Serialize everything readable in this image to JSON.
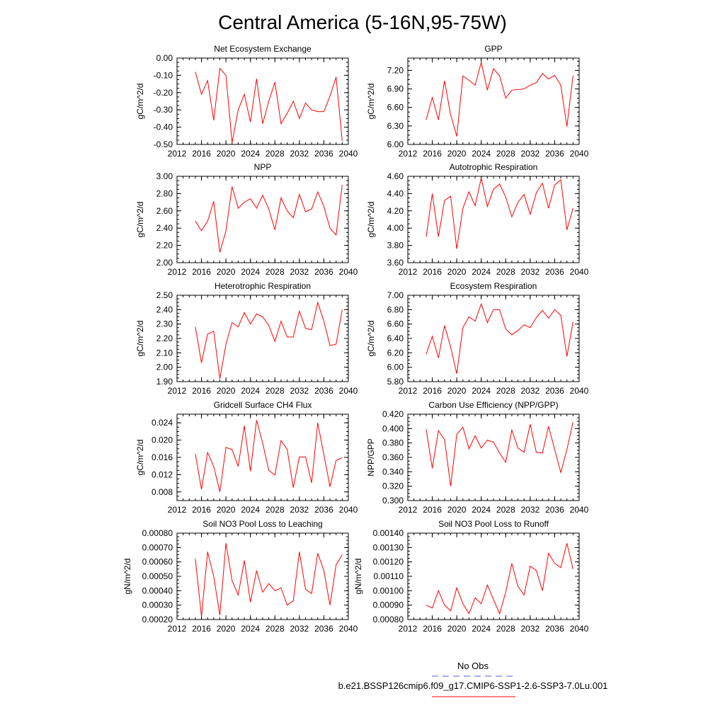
{
  "page": {
    "title": "Central America (5-16N,95-75W)",
    "legend": {
      "obs_label": "No Obs",
      "obs_color": "#5b5bd6",
      "case_label": "b.e21.BSSP126cmip6.f09_g17.CMIP6-SSP1-2.6-SSP3-7.0Lu.001",
      "case_color": "#ff0000"
    }
  },
  "chart_data": [
    {
      "type": "line",
      "title": "Net Ecosystem Exchange",
      "ylabel": "gC/m^2/d",
      "ylim": [
        -0.5,
        0.0
      ],
      "yticks": [
        "0.00",
        "-0.10",
        "-0.20",
        "-0.30",
        "-0.40",
        "-0.50"
      ],
      "xlim": [
        2012,
        2040
      ],
      "xticks": [
        "2012",
        "2016",
        "2020",
        "2024",
        "2028",
        "2032",
        "2036",
        "2040"
      ],
      "x": [
        2015,
        2016,
        2017,
        2018,
        2019,
        2020,
        2021,
        2022,
        2023,
        2024,
        2025,
        2026,
        2027,
        2028,
        2029,
        2030,
        2031,
        2032,
        2033,
        2034,
        2035,
        2036,
        2037,
        2038,
        2039
      ],
      "values": [
        -0.08,
        -0.21,
        -0.13,
        -0.36,
        -0.06,
        -0.1,
        -0.49,
        -0.3,
        -0.21,
        -0.37,
        -0.12,
        -0.38,
        -0.25,
        -0.14,
        -0.38,
        -0.32,
        -0.25,
        -0.35,
        -0.26,
        -0.3,
        -0.31,
        -0.31,
        -0.22,
        -0.11,
        -0.48
      ]
    },
    {
      "type": "line",
      "title": "GPP",
      "ylabel": "gC/m^2/d",
      "ylim": [
        6.0,
        7.4
      ],
      "yticks": [
        "7.20",
        "6.90",
        "6.60",
        "6.30",
        "6.00"
      ],
      "xlim": [
        2012,
        2040
      ],
      "xticks": [
        "2012",
        "2016",
        "2020",
        "2024",
        "2028",
        "2032",
        "2036",
        "2040"
      ],
      "x": [
        2015,
        2016,
        2017,
        2018,
        2019,
        2020,
        2021,
        2022,
        2023,
        2024,
        2025,
        2026,
        2027,
        2028,
        2029,
        2030,
        2031,
        2032,
        2033,
        2034,
        2035,
        2036,
        2037,
        2038,
        2039
      ],
      "values": [
        6.4,
        6.76,
        6.4,
        7.03,
        6.48,
        6.13,
        7.11,
        7.04,
        6.96,
        7.33,
        6.88,
        7.23,
        7.11,
        6.75,
        6.88,
        6.89,
        6.9,
        6.96,
        7.0,
        7.15,
        7.06,
        7.12,
        6.96,
        6.29,
        7.12
      ]
    },
    {
      "type": "line",
      "title": "NPP",
      "ylabel": "gC/m^2/d",
      "ylim": [
        2.0,
        3.0
      ],
      "yticks": [
        "3.00",
        "2.80",
        "2.60",
        "2.40",
        "2.20",
        "2.00"
      ],
      "xlim": [
        2012,
        2040
      ],
      "xticks": [
        "2012",
        "2016",
        "2020",
        "2024",
        "2028",
        "2032",
        "2036",
        "2040"
      ],
      "x": [
        2015,
        2016,
        2017,
        2018,
        2019,
        2020,
        2021,
        2022,
        2023,
        2024,
        2025,
        2026,
        2027,
        2028,
        2029,
        2030,
        2031,
        2032,
        2033,
        2034,
        2035,
        2036,
        2037,
        2038,
        2039
      ],
      "values": [
        2.48,
        2.37,
        2.48,
        2.71,
        2.12,
        2.37,
        2.88,
        2.63,
        2.7,
        2.74,
        2.63,
        2.78,
        2.62,
        2.38,
        2.75,
        2.6,
        2.52,
        2.79,
        2.59,
        2.62,
        2.82,
        2.65,
        2.4,
        2.32,
        2.9
      ]
    },
    {
      "type": "line",
      "title": "Autotrophic Respiration",
      "ylabel": "gC/m^2/d",
      "ylim": [
        3.6,
        4.6
      ],
      "yticks": [
        "4.60",
        "4.40",
        "4.20",
        "4.00",
        "3.80",
        "3.60"
      ],
      "xlim": [
        2012,
        2040
      ],
      "xticks": [
        "2012",
        "2016",
        "2020",
        "2024",
        "2028",
        "2032",
        "2036",
        "2040"
      ],
      "x": [
        2015,
        2016,
        2017,
        2018,
        2019,
        2020,
        2021,
        2022,
        2023,
        2024,
        2025,
        2026,
        2027,
        2028,
        2029,
        2030,
        2031,
        2032,
        2033,
        2034,
        2035,
        2036,
        2037,
        2038,
        2039
      ],
      "values": [
        3.9,
        4.4,
        3.9,
        4.32,
        4.37,
        3.76,
        4.23,
        4.42,
        4.26,
        4.58,
        4.25,
        4.45,
        4.51,
        4.36,
        4.13,
        4.3,
        4.39,
        4.16,
        4.41,
        4.52,
        4.23,
        4.5,
        4.56,
        3.98,
        4.23
      ]
    },
    {
      "type": "line",
      "title": "Heterotrophic Respiration",
      "ylabel": "gC/m^2/d",
      "ylim": [
        1.9,
        2.5
      ],
      "yticks": [
        "2.50",
        "2.40",
        "2.30",
        "2.20",
        "2.10",
        "2.00",
        "1.90"
      ],
      "xlim": [
        2012,
        2040
      ],
      "xticks": [
        "2012",
        "2016",
        "2020",
        "2024",
        "2028",
        "2032",
        "2036",
        "2040"
      ],
      "x": [
        2015,
        2016,
        2017,
        2018,
        2019,
        2020,
        2021,
        2022,
        2023,
        2024,
        2025,
        2026,
        2027,
        2028,
        2029,
        2030,
        2031,
        2032,
        2033,
        2034,
        2035,
        2036,
        2037,
        2038,
        2039
      ],
      "values": [
        2.28,
        2.03,
        2.23,
        2.25,
        1.92,
        2.16,
        2.31,
        2.28,
        2.38,
        2.3,
        2.37,
        2.35,
        2.29,
        2.18,
        2.32,
        2.21,
        2.21,
        2.39,
        2.27,
        2.26,
        2.45,
        2.32,
        2.15,
        2.16,
        2.4
      ]
    },
    {
      "type": "line",
      "title": "Ecosystem Respiration",
      "ylabel": "gC/m^2/d",
      "ylim": [
        5.8,
        7.0
      ],
      "yticks": [
        "7.00",
        "6.80",
        "6.60",
        "6.40",
        "6.20",
        "6.00",
        "5.80"
      ],
      "xlim": [
        2012,
        2040
      ],
      "xticks": [
        "2012",
        "2016",
        "2020",
        "2024",
        "2028",
        "2032",
        "2036",
        "2040"
      ],
      "x": [
        2015,
        2016,
        2017,
        2018,
        2019,
        2020,
        2021,
        2022,
        2023,
        2024,
        2025,
        2026,
        2027,
        2028,
        2029,
        2030,
        2031,
        2032,
        2033,
        2034,
        2035,
        2036,
        2037,
        2038,
        2039
      ],
      "values": [
        6.18,
        6.43,
        6.13,
        6.58,
        6.28,
        5.91,
        6.55,
        6.7,
        6.64,
        6.88,
        6.62,
        6.8,
        6.8,
        6.53,
        6.45,
        6.51,
        6.59,
        6.55,
        6.69,
        6.79,
        6.68,
        6.8,
        6.72,
        6.15,
        6.63
      ]
    },
    {
      "type": "line",
      "title": "Gridcell Surface CH4 Flux",
      "ylabel": "gC/m^2/d",
      "ylim": [
        0.006,
        0.026
      ],
      "yticks": [
        "0.024",
        "0.020",
        "0.016",
        "0.012",
        "0.008"
      ],
      "xlim": [
        2012,
        2040
      ],
      "xticks": [
        "2012",
        "2016",
        "2020",
        "2024",
        "2028",
        "2032",
        "2036",
        "2040"
      ],
      "x": [
        2015,
        2016,
        2017,
        2018,
        2019,
        2020,
        2021,
        2022,
        2023,
        2024,
        2025,
        2026,
        2027,
        2028,
        2029,
        2030,
        2031,
        2032,
        2033,
        2034,
        2035,
        2036,
        2037,
        2038,
        2039
      ],
      "values": [
        0.0168,
        0.0086,
        0.0171,
        0.0139,
        0.008,
        0.0183,
        0.0178,
        0.0139,
        0.0233,
        0.0128,
        0.0246,
        0.0193,
        0.013,
        0.0119,
        0.0199,
        0.0179,
        0.009,
        0.0161,
        0.0161,
        0.0101,
        0.024,
        0.0166,
        0.0092,
        0.0153,
        0.0159
      ]
    },
    {
      "type": "line",
      "title": "Carbon Use Efficiency (NPP/GPP)",
      "ylabel": "NPP/GPP",
      "ylim": [
        0.3,
        0.42
      ],
      "yticks": [
        "0.420",
        "0.400",
        "0.380",
        "0.360",
        "0.340",
        "0.320",
        "0.300"
      ],
      "xlim": [
        2012,
        2040
      ],
      "xticks": [
        "2012",
        "2016",
        "2020",
        "2024",
        "2028",
        "2032",
        "2036",
        "2040"
      ],
      "x": [
        2015,
        2016,
        2017,
        2018,
        2019,
        2020,
        2021,
        2022,
        2023,
        2024,
        2025,
        2026,
        2027,
        2028,
        2029,
        2030,
        2031,
        2032,
        2033,
        2034,
        2035,
        2036,
        2037,
        2038,
        2039
      ],
      "values": [
        0.399,
        0.345,
        0.397,
        0.385,
        0.32,
        0.392,
        0.402,
        0.372,
        0.39,
        0.373,
        0.384,
        0.381,
        0.366,
        0.353,
        0.398,
        0.373,
        0.367,
        0.406,
        0.367,
        0.366,
        0.403,
        0.371,
        0.339,
        0.371,
        0.409
      ]
    },
    {
      "type": "line",
      "title": "Soil NO3 Pool Loss to Leaching",
      "ylabel": "gN/m^2/d",
      "ylim": [
        0.0002,
        0.0008
      ],
      "yticks": [
        "0.00080",
        "0.00070",
        "0.00060",
        "0.00050",
        "0.00040",
        "0.00030",
        "0.00020"
      ],
      "xlim": [
        2012,
        2040
      ],
      "xticks": [
        "2012",
        "2016",
        "2020",
        "2024",
        "2028",
        "2032",
        "2036",
        "2040"
      ],
      "x": [
        2015,
        2016,
        2017,
        2018,
        2019,
        2020,
        2021,
        2022,
        2023,
        2024,
        2025,
        2026,
        2027,
        2028,
        2029,
        2030,
        2031,
        2032,
        2033,
        2034,
        2035,
        2036,
        2037,
        2038,
        2039
      ],
      "values": [
        0.00062,
        0.00022,
        0.00067,
        0.0005,
        0.00023,
        0.00073,
        0.00047,
        0.00037,
        0.00061,
        0.00032,
        0.00054,
        0.00039,
        0.00045,
        0.0004,
        0.00042,
        0.0003,
        0.00033,
        0.00067,
        0.00041,
        0.00038,
        0.00066,
        0.00054,
        0.0003,
        0.00058,
        0.00065
      ]
    },
    {
      "type": "line",
      "title": "Soil NO3 Pool Loss to Runoff",
      "ylabel": "gN/m^2/d",
      "ylim": [
        0.0008,
        0.0014
      ],
      "yticks": [
        "0.00140",
        "0.00130",
        "0.00120",
        "0.00110",
        "0.00100",
        "0.00090",
        "0.00080"
      ],
      "xlim": [
        2012,
        2040
      ],
      "xticks": [
        "2012",
        "2016",
        "2020",
        "2024",
        "2028",
        "2032",
        "2036",
        "2040"
      ],
      "x": [
        2015,
        2016,
        2017,
        2018,
        2019,
        2020,
        2021,
        2022,
        2023,
        2024,
        2025,
        2026,
        2027,
        2028,
        2029,
        2030,
        2031,
        2032,
        2033,
        2034,
        2035,
        2036,
        2037,
        2038,
        2039
      ],
      "values": [
        0.0009,
        0.00088,
        0.001,
        0.0009,
        0.00086,
        0.00102,
        0.00091,
        0.00084,
        0.00095,
        0.00091,
        0.00104,
        0.00094,
        0.00084,
        0.00099,
        0.00119,
        0.00103,
        0.00097,
        0.00117,
        0.00114,
        0.001,
        0.00126,
        0.00119,
        0.00116,
        0.00133,
        0.00115
      ]
    }
  ]
}
